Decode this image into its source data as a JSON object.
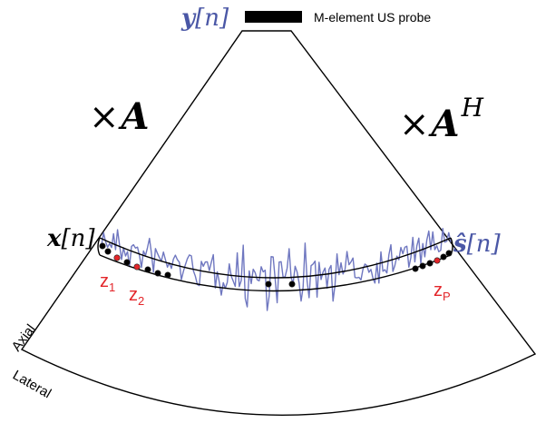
{
  "probe": {
    "label": "M-element US probe"
  },
  "signals": {
    "y_symbol": "y",
    "y_index": "[n]",
    "x_symbol": "x",
    "x_index": "[n]",
    "s_symbol": "ŝ",
    "s_index": "[n]"
  },
  "operators": {
    "forward_times": "×",
    "forward_matrix": "A",
    "adjoint_times": "×",
    "adjoint_matrix": "A",
    "adjoint_superscript": "H"
  },
  "scatterers": {
    "z1_base": "z",
    "z1_sub": "1",
    "z2_base": "z",
    "z2_sub": "2",
    "zp_base": "z",
    "zp_sub": "P"
  },
  "axes": {
    "axial": "Axial",
    "lateral": "Lateral"
  },
  "colors": {
    "signal_blue": "#4a57a6",
    "trace_blue": "#6f77c0",
    "scatterer_red": "#e3262a",
    "ink": "#000000"
  }
}
